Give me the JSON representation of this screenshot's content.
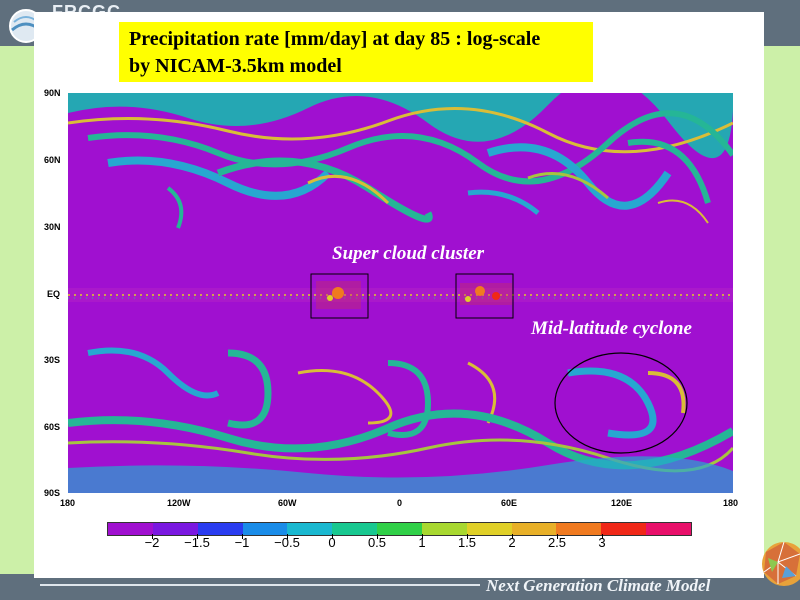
{
  "header": {
    "logo_text": "FRCGC"
  },
  "slide": {
    "title_line1": "Precipitation rate [mm/day] at day 85 : log-scale",
    "title_line2": "by NICAM-3.5km model"
  },
  "map": {
    "lat_labels": [
      "90N",
      "60N",
      "30N",
      "EQ",
      "30S",
      "60S",
      "90S"
    ],
    "lon_labels": [
      "180",
      "120W",
      "60W",
      "0",
      "60E",
      "120E",
      "180"
    ],
    "annotations": {
      "super_cloud_cluster": "Super cloud cluster",
      "mid_latitude_cyclone": "Mid-latitude cyclone"
    }
  },
  "colorbar": {
    "colors": [
      "#a010d0",
      "#7a18e0",
      "#2a3cf0",
      "#1a8ce8",
      "#1ab8d0",
      "#18c890",
      "#30d048",
      "#a8d830",
      "#e0d028",
      "#e8b028",
      "#f07a20",
      "#f02818",
      "#e8106a"
    ],
    "tick_labels": [
      "−2",
      "−1.5",
      "−1",
      "−0.5",
      "0",
      "0.5",
      "1",
      "1.5",
      "2",
      "2.5",
      "3"
    ]
  },
  "footer": {
    "text": "Next Generation Climate Model"
  },
  "theme": {
    "background": "#5f6f7d",
    "accent_green": "#ccf0a8",
    "title_bg": "#ffff00",
    "map_bg": "#a010d0"
  }
}
